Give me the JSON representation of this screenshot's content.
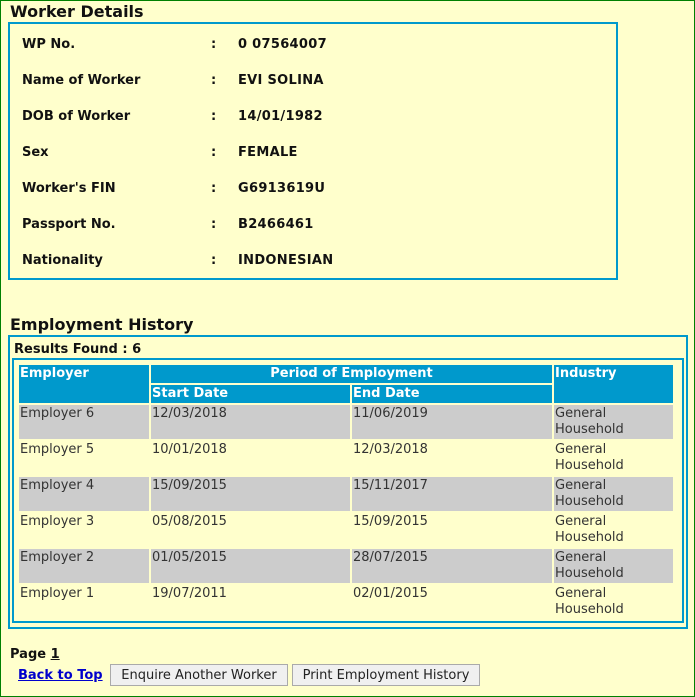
{
  "worker_details": {
    "title": "Worker Details",
    "separator": ":",
    "fields": [
      {
        "label": "WP No.",
        "value": "0 07564007"
      },
      {
        "label": "Name of Worker",
        "value": "EVI SOLINA"
      },
      {
        "label": "DOB of Worker",
        "value": "14/01/1982"
      },
      {
        "label": "Sex",
        "value": "FEMALE"
      },
      {
        "label": "Worker's FIN",
        "value": "G6913619U"
      },
      {
        "label": "Passport No.",
        "value": "B2466461"
      },
      {
        "label": "Nationality",
        "value": "INDONESIAN"
      }
    ]
  },
  "employment_history": {
    "title": "Employment History",
    "results_found": "Results Found : 6",
    "headers": {
      "employer": "Employer",
      "period": "Period of Employment",
      "start": "Start Date",
      "end": "End Date",
      "industry": "Industry"
    },
    "rows": [
      {
        "employer": "Employer 6",
        "start": "12/03/2018",
        "end": "11/06/2019",
        "industry": "General Household"
      },
      {
        "employer": "Employer 5",
        "start": "10/01/2018",
        "end": "12/03/2018",
        "industry": "General Household"
      },
      {
        "employer": "Employer 4",
        "start": "15/09/2015",
        "end": "15/11/2017",
        "industry": "General Household"
      },
      {
        "employer": "Employer 3",
        "start": "05/08/2015",
        "end": "15/09/2015",
        "industry": "General Household"
      },
      {
        "employer": "Employer 2",
        "start": "01/05/2015",
        "end": "28/07/2015",
        "industry": "General Household"
      },
      {
        "employer": "Employer 1",
        "start": "19/07/2011",
        "end": "02/01/2015",
        "industry": "General Household"
      }
    ]
  },
  "footer": {
    "page_label": "Page",
    "page_number": "1",
    "back_to_top": "Back to Top",
    "enquire_button": "Enquire Another Worker",
    "print_button": "Print Employment History"
  },
  "colors": {
    "accent": "#0099CC",
    "background": "#FFFFCC",
    "frame": "#008000",
    "alt_row": "#CCCCCC"
  }
}
